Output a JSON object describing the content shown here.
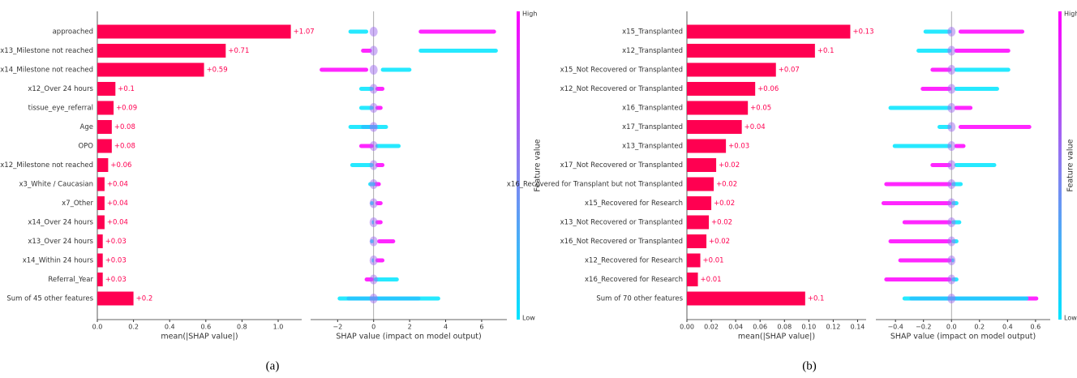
{
  "chart_data": [
    {
      "type": "bar",
      "x_label": "mean(|SHAP value|)",
      "color": "#ff0051",
      "categories": [
        "approached",
        "x13_Milestone not reached",
        "x14_Milestone not reached",
        "x12_Over 24 hours",
        "tissue_eye_referral",
        "Age",
        "OPO",
        "x12_Milestone not reached",
        "x3_White / Caucasian",
        "x7_Other",
        "x14_Over 24 hours",
        "x13_Over 24 hours",
        "x14_Within 24 hours",
        "Referral_Year",
        "Sum of 45 other features"
      ],
      "values": [
        1.07,
        0.71,
        0.59,
        0.1,
        0.09,
        0.08,
        0.08,
        0.06,
        0.04,
        0.04,
        0.04,
        0.03,
        0.03,
        0.03,
        0.2
      ],
      "value_labels": [
        "+1.07",
        "+0.71",
        "+0.59",
        "+0.1",
        "+0.09",
        "+0.08",
        "+0.08",
        "+0.06",
        "+0.04",
        "+0.04",
        "+0.04",
        "+0.03",
        "+0.03",
        "+0.03",
        "+0.2"
      ],
      "xlim": [
        0,
        1.13
      ],
      "xticks": [
        {
          "value": 0,
          "label": "0.0"
        },
        {
          "value": 0.2,
          "label": "0.2"
        },
        {
          "value": 0.4,
          "label": "0.4"
        },
        {
          "value": 0.6,
          "label": "0.6"
        },
        {
          "value": 0.8,
          "label": "0.8"
        },
        {
          "value": 1.0,
          "label": "1.0"
        }
      ]
    },
    {
      "type": "beeswarm",
      "x_label": "SHAP value (impact on model output)",
      "colorbar_label": "Feature value",
      "series": [
        {
          "name": "High",
          "color": "#ff00ff",
          "values": [
            [
              2.5,
              6.8
            ],
            [
              -0.7,
              -0.1
            ],
            [
              -3.0,
              -0.3
            ],
            [
              0.1,
              0.6
            ],
            [
              0.1,
              0.5
            ],
            [
              -0.7,
              0.2
            ],
            [
              -0.8,
              0
            ],
            [
              0.1,
              0.6
            ],
            [
              0,
              0.4
            ],
            [
              0.1,
              0.5
            ],
            [
              0.1,
              0.5
            ],
            [
              0.2,
              1.2
            ],
            [
              0.1,
              0.6
            ],
            [
              -0.5,
              0
            ],
            [
              -1.5,
              2.6
            ]
          ]
        },
        {
          "name": "Low",
          "color": "#00e5ff",
          "values": [
            [
              -1.4,
              -0.3
            ],
            [
              2.5,
              6.9
            ],
            [
              0.4,
              2.1
            ],
            [
              -0.8,
              0
            ],
            [
              -0.8,
              0
            ],
            [
              -1.4,
              0.8
            ],
            [
              0.1,
              1.5
            ],
            [
              -1.3,
              0
            ],
            [
              -0.3,
              0.1
            ],
            [
              -0.2,
              0
            ],
            [
              -0.1,
              0
            ],
            [
              -0.2,
              0
            ],
            [
              -0.1,
              0
            ],
            [
              0,
              1.4
            ],
            [
              -2.0,
              3.7
            ]
          ]
        }
      ],
      "xlim": [
        -3.5,
        7.4
      ],
      "xticks": [
        {
          "value": -2,
          "label": "−2"
        },
        0,
        2,
        4,
        6
      ]
    },
    {
      "type": "bar",
      "x_label": "mean(|SHAP value|)",
      "color": "#ff0051",
      "categories": [
        "x15_Transplanted",
        "x12_Transplanted",
        "x15_Not Recovered or Transplanted",
        "x12_Not Recovered or Transplanted",
        "x16_Transplanted",
        "x17_Transplanted",
        "x13_Transplanted",
        "x17_Not Recovered or Transplanted",
        "x16_Recovered for Transplant but not Transplanted",
        "x15_Recovered for Research",
        "x13_Not Recovered or Transplanted",
        "x16_Not Recovered or Transplanted",
        "x12_Recovered for Research",
        "x16_Recovered for Research",
        "Sum of 70 other features"
      ],
      "values": [
        0.134,
        0.105,
        0.073,
        0.056,
        0.05,
        0.045,
        0.032,
        0.024,
        0.022,
        0.02,
        0.018,
        0.016,
        0.011,
        0.009,
        0.097
      ],
      "value_labels": [
        "+0.13",
        "+0.1",
        "+0.07",
        "+0.06",
        "+0.05",
        "+0.04",
        "+0.03",
        "+0.02",
        "+0.02",
        "+0.02",
        "+0.02",
        "+0.02",
        "+0.01",
        "+0.01",
        "+0.1"
      ],
      "xlim": [
        0,
        0.147
      ],
      "xticks": [
        {
          "value": 0,
          "label": "0.00"
        },
        {
          "value": 0.02,
          "label": "0.02"
        },
        {
          "value": 0.04,
          "label": "0.04"
        },
        {
          "value": 0.06,
          "label": "0.06"
        },
        {
          "value": 0.08,
          "label": "0.08"
        },
        {
          "value": 0.1,
          "label": "0.10"
        },
        {
          "value": 0.12,
          "label": "0.12"
        },
        {
          "value": 0.14,
          "label": "0.14"
        }
      ]
    },
    {
      "type": "beeswarm",
      "x_label": "SHAP value (impact on model output)",
      "colorbar_label": "Feature value",
      "series": [
        {
          "name": "High",
          "color": "#ff00ff",
          "values": [
            [
              0.05,
              0.52
            ],
            [
              0.02,
              0.42
            ],
            [
              -0.15,
              0
            ],
            [
              -0.22,
              0
            ],
            [
              0.02,
              0.15
            ],
            [
              0.05,
              0.57
            ],
            [
              0.02,
              0.1
            ],
            [
              -0.15,
              0
            ],
            [
              -0.48,
              0
            ],
            [
              -0.5,
              0
            ],
            [
              -0.35,
              0
            ],
            [
              -0.45,
              0
            ],
            [
              -0.38,
              0
            ],
            [
              -0.48,
              0
            ],
            [
              -0.3,
              0.62
            ]
          ]
        },
        {
          "name": "Low",
          "color": "#00e5ff",
          "values": [
            [
              -0.2,
              0
            ],
            [
              -0.25,
              0
            ],
            [
              0.02,
              0.42
            ],
            [
              0.02,
              0.34
            ],
            [
              -0.45,
              0
            ],
            [
              -0.1,
              0
            ],
            [
              -0.42,
              0
            ],
            [
              0.02,
              0.32
            ],
            [
              0,
              0.08
            ],
            [
              0,
              0.05
            ],
            [
              0,
              0.07
            ],
            [
              0,
              0.05
            ],
            [
              0,
              0.02
            ],
            [
              0,
              0.05
            ],
            [
              -0.35,
              0.55
            ]
          ]
        }
      ],
      "xlim": [
        -0.54,
        0.705
      ],
      "xticks": [
        {
          "value": -0.4,
          "label": "−0.4"
        },
        {
          "value": -0.2,
          "label": "−0.2"
        },
        {
          "value": 0,
          "label": "0.0"
        },
        {
          "value": 0.2,
          "label": "0.2"
        },
        {
          "value": 0.4,
          "label": "0.4"
        },
        {
          "value": 0.6,
          "label": "0.6"
        }
      ]
    }
  ],
  "captions": [
    "(a)",
    "(b)"
  ]
}
